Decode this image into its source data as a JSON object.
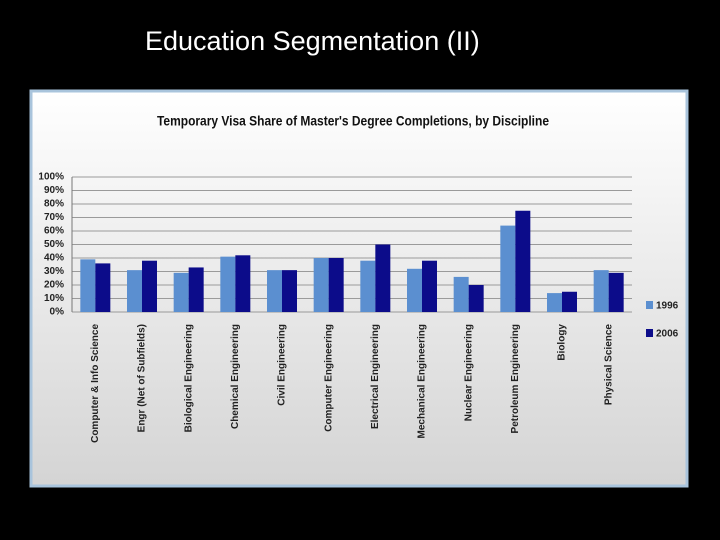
{
  "header": {
    "title": "Education Segmentation (II)"
  },
  "chart_data": {
    "type": "bar",
    "title": "Temporary Visa Share of Master's Degree Completions, by Discipline",
    "categories": [
      "Computer & Info Science",
      "Engr (Net of Subfields)",
      "Biological Engineering",
      "Chemical Engineering",
      "Civil Engineering",
      "Computer Engineering",
      "Electrical Engineering",
      "Mechanical Engineering",
      "Nuclear Engineering",
      "Petroleum Engineering",
      "Biology",
      "Physical Science"
    ],
    "series": [
      {
        "name": "1996",
        "color": "#5b8fd0",
        "values": [
          39,
          31,
          29,
          41,
          31,
          40,
          38,
          32,
          26,
          64,
          14,
          31
        ]
      },
      {
        "name": "2006",
        "color": "#0c0c8a",
        "values": [
          36,
          38,
          33,
          42,
          31,
          40,
          50,
          38,
          20,
          75,
          15,
          29
        ]
      }
    ],
    "ylim": [
      0,
      100
    ],
    "yticks": [
      {
        "value": 0,
        "label": "0%"
      },
      {
        "value": 10,
        "label": "10%"
      },
      {
        "value": 20,
        "label": "20%"
      },
      {
        "value": 30,
        "label": "30%"
      },
      {
        "value": 40,
        "label": "40%"
      },
      {
        "value": 50,
        "label": "50%"
      },
      {
        "value": 60,
        "label": "60%"
      },
      {
        "value": 70,
        "label": "70%"
      },
      {
        "value": 80,
        "label": "80%"
      },
      {
        "value": 90,
        "label": "90%"
      },
      {
        "value": 100,
        "label": "100%"
      }
    ],
    "grid": true,
    "legend": "right"
  }
}
